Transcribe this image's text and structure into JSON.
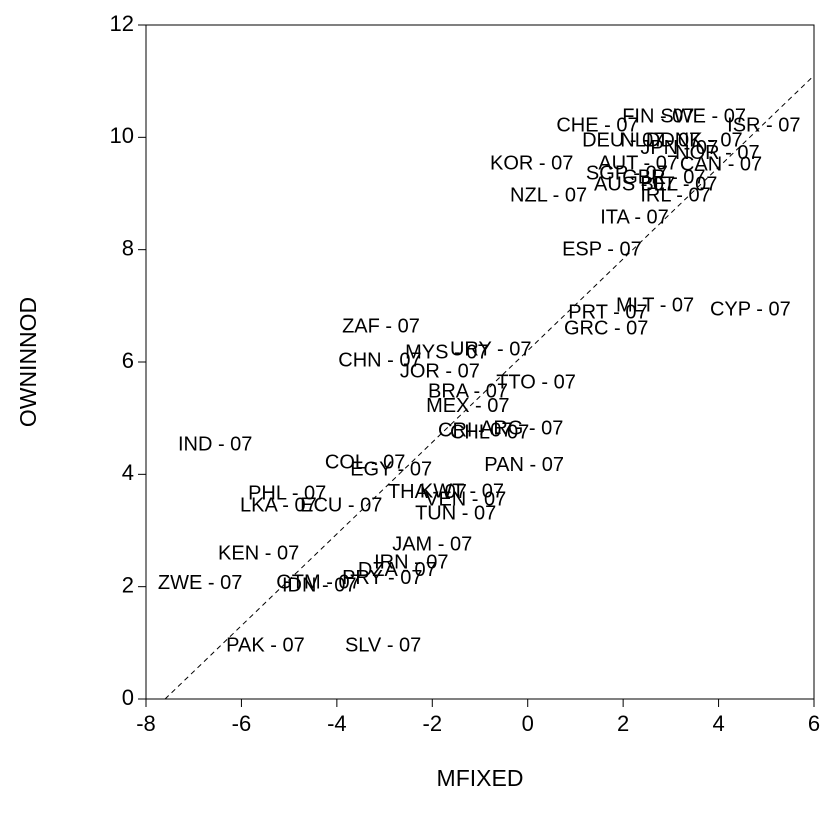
{
  "chart_data": {
    "type": "scatter",
    "x_label": "MFIXED",
    "y_label": "OWNINNOD",
    "xlim": [
      -8,
      6
    ],
    "ylim": [
      0,
      12
    ],
    "xticks": [
      -8,
      -6,
      -4,
      -2,
      0,
      2,
      4,
      6
    ],
    "yticks": [
      0,
      2,
      4,
      6,
      8,
      10,
      12
    ],
    "color": "#000000",
    "reference_line": {
      "x": [
        -7.6,
        6
      ],
      "y": [
        0,
        11.1
      ]
    },
    "series": [
      {
        "name": "OWNINNOD",
        "labels": [
          "CHE - 07",
          "FIN - 07",
          "SWE - 07",
          "ISR - 07",
          "DEU - 07",
          "NLD - 07",
          "DNK - 07",
          "JPN - 07",
          "NOR - 07",
          "KOR - 07",
          "AUT - 07",
          "SGP - 07",
          "AUS - 07",
          "GBR - 07",
          "BEL - 07",
          "CAN - 07",
          "IRL - 07",
          "NZL - 07",
          "ITA - 07",
          "ESP - 07",
          "PRT - 07",
          "MLT - 07",
          "CYP - 07",
          "GRC - 07",
          "ZAF - 07",
          "URY - 07",
          "MYS - 07",
          "CHN - 07",
          "JOR - 07",
          "TTO - 07",
          "BRA - 07",
          "MEX - 07",
          "ARG - 07",
          "CRI - 07",
          "CHL - 07",
          "IND - 07",
          "PAN - 07",
          "COL - 07",
          "EGY - 07",
          "PHL - 07",
          "THA - 07",
          "KWT - 07",
          "VEN - 07",
          "LKA - 07",
          "ECU - 07",
          "TUN - 07",
          "JAM - 07",
          "KEN - 07",
          "IRN - 07",
          "DZA - 07",
          "PRY - 07",
          "ZWE - 07",
          "GTM - 07",
          "IDN - 07",
          "PAK - 07",
          "SLV - 07"
        ],
        "x": [
          0.6,
          1.98,
          2.78,
          4.18,
          1.14,
          1.94,
          2.78,
          2.36,
          3.09,
          -0.79,
          1.48,
          1.22,
          1.39,
          1.98,
          2.36,
          3.19,
          2.36,
          -0.37,
          1.52,
          0.72,
          0.85,
          1.85,
          3.82,
          0.76,
          -3.89,
          -1.63,
          -2.57,
          -3.97,
          -2.68,
          -0.66,
          -2.09,
          -2.13,
          -1.0,
          -1.88,
          -1.63,
          -7.33,
          -0.91,
          -4.25,
          -3.72,
          -5.86,
          -2.93,
          -2.26,
          -2.15,
          -6.03,
          -4.77,
          -2.36,
          -2.84,
          -6.49,
          -3.22,
          -3.56,
          -3.89,
          -7.75,
          -5.27,
          -5.15,
          -6.32,
          -3.83
        ],
        "values": [
          10.2,
          10.36,
          10.36,
          10.2,
          9.93,
          9.93,
          9.93,
          9.8,
          9.71,
          9.52,
          9.52,
          9.34,
          9.15,
          9.27,
          9.15,
          9.5,
          8.95,
          8.95,
          8.56,
          7.99,
          6.87,
          6.99,
          6.92,
          6.58,
          6.62,
          6.21,
          6.16,
          6.01,
          5.82,
          5.62,
          5.46,
          5.2,
          4.8,
          4.77,
          4.73,
          4.52,
          4.15,
          4.2,
          4.07,
          3.65,
          3.67,
          3.68,
          3.54,
          3.43,
          3.43,
          3.29,
          2.74,
          2.58,
          2.42,
          2.28,
          2.14,
          2.05,
          2.06,
          2.01,
          0.94,
          0.94
        ]
      }
    ]
  }
}
